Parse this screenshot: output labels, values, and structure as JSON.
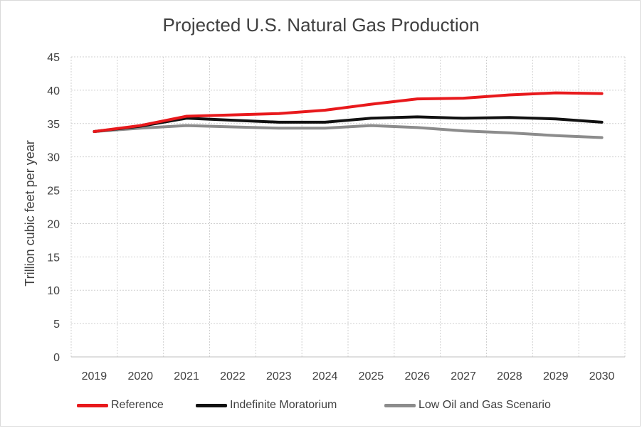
{
  "chart_data": {
    "type": "line",
    "title": "Projected U.S. Natural Gas Production",
    "xlabel": "",
    "ylabel": "Trillion cubic feet per year",
    "x": [
      "2019",
      "2020",
      "2021",
      "2022",
      "2023",
      "2024",
      "2025",
      "2026",
      "2027",
      "2028",
      "2029",
      "2030"
    ],
    "ylim": [
      0,
      45
    ],
    "yticks": [
      "0",
      "5",
      "10",
      "15",
      "20",
      "25",
      "30",
      "35",
      "40",
      "45"
    ],
    "grid": true,
    "legend_position": "bottom",
    "series": [
      {
        "name": "Reference",
        "color": "#e8191c",
        "values": [
          33.8,
          34.7,
          36.1,
          36.3,
          36.5,
          37.0,
          37.9,
          38.7,
          38.8,
          39.3,
          39.6,
          39.5
        ]
      },
      {
        "name": "Indefinite Moratorium",
        "color": "#111111",
        "values": [
          33.8,
          34.6,
          35.8,
          35.5,
          35.2,
          35.2,
          35.8,
          36.0,
          35.8,
          35.9,
          35.7,
          35.2
        ]
      },
      {
        "name": "Low Oil and Gas Scenario",
        "color": "#8c8c8c",
        "values": [
          33.8,
          34.3,
          34.7,
          34.5,
          34.3,
          34.3,
          34.7,
          34.4,
          33.9,
          33.6,
          33.2,
          32.9
        ]
      }
    ]
  }
}
